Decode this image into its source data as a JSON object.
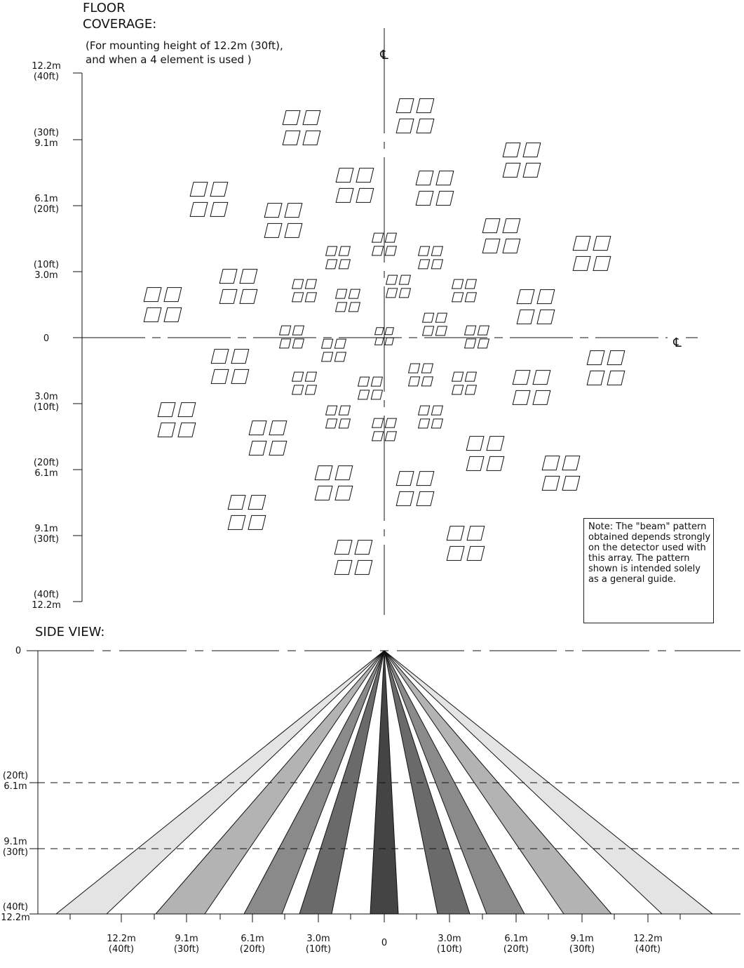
{
  "floor": {
    "title_lines": [
      "FLOOR",
      "COVERAGE:"
    ],
    "subtitle_lines": [
      "(For mounting height of 12.2m (30ft),",
      "and when a 4 element is used )"
    ],
    "centerline_symbol": "℄",
    "y_axis_labels": [
      {
        "lines": [
          "12.2m",
          "(40ft)"
        ]
      },
      {
        "lines": [
          "(30ft)",
          "9.1m"
        ]
      },
      {
        "lines": [
          "6.1m",
          "(20ft)"
        ]
      },
      {
        "lines": [
          "(10ft)",
          "3.0m"
        ]
      },
      {
        "lines": [
          "0"
        ]
      },
      {
        "lines": [
          "3.0m",
          "(10ft)"
        ]
      },
      {
        "lines": [
          "(20ft)",
          "6.1m"
        ]
      },
      {
        "lines": [
          "9.1m",
          "(30ft)"
        ]
      },
      {
        "lines": [
          "(40ft)",
          "12.2m"
        ]
      }
    ]
  },
  "note": {
    "lines": [
      "Note:  The \"beam\" pattern",
      "obtained depends strongly",
      "on the detector used with",
      "this array.  The pattern",
      "shown is intended solely",
      "as a general guide."
    ]
  },
  "side": {
    "title": "SIDE VIEW:",
    "y_labels": [
      {
        "lines": [
          "0"
        ]
      },
      {
        "lines": [
          "(20ft)",
          "6.1m"
        ]
      },
      {
        "lines": [
          "9.1m",
          "(30ft)"
        ]
      },
      {
        "lines": [
          "(40ft)",
          "12.2m"
        ]
      }
    ],
    "x_labels": [
      {
        "lines": [
          "12.2m",
          "(40ft)"
        ]
      },
      {
        "lines": [
          "9.1m",
          "(30ft)"
        ]
      },
      {
        "lines": [
          "6.1m",
          "(20ft)"
        ]
      },
      {
        "lines": [
          "3.0m",
          "(10ft)"
        ]
      },
      {
        "lines": [
          "0"
        ]
      },
      {
        "lines": [
          "3.0m",
          "(10ft)"
        ]
      },
      {
        "lines": [
          "6.1m",
          "(20ft)"
        ]
      },
      {
        "lines": [
          "9.1m",
          "(30ft)"
        ]
      },
      {
        "lines": [
          "12.2m",
          "(40ft)"
        ]
      }
    ],
    "beam_colors": [
      "#e4e4e4",
      "#b3b3b3",
      "#8a8a8a",
      "#6a6a6a",
      "#444444"
    ]
  }
}
